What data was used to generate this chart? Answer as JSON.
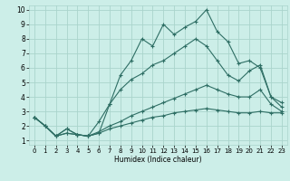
{
  "xlabel": "Humidex (Indice chaleur)",
  "bg_color": "#cceee8",
  "grid_color": "#aad4cc",
  "line_color": "#2e6e64",
  "xlim": [
    -0.5,
    23.5
  ],
  "ylim": [
    0.7,
    10.3
  ],
  "xticks": [
    0,
    1,
    2,
    3,
    4,
    5,
    6,
    7,
    8,
    9,
    10,
    11,
    12,
    13,
    14,
    15,
    16,
    17,
    18,
    19,
    20,
    21,
    22,
    23
  ],
  "yticks": [
    1,
    2,
    3,
    4,
    5,
    6,
    7,
    8,
    9,
    10
  ],
  "lines": [
    {
      "x": [
        0,
        1,
        2,
        3,
        4,
        5,
        6,
        7,
        8,
        9,
        10,
        11,
        12,
        13,
        14,
        15,
        16,
        17,
        18,
        19,
        20,
        21,
        22,
        23
      ],
      "y": [
        2.6,
        2.0,
        1.3,
        1.8,
        1.4,
        1.3,
        1.5,
        3.5,
        5.5,
        6.5,
        8.0,
        7.5,
        9.0,
        8.3,
        8.8,
        9.2,
        10.0,
        8.5,
        7.8,
        6.3,
        6.5,
        6.0,
        4.0,
        3.3
      ]
    },
    {
      "x": [
        0,
        1,
        2,
        3,
        4,
        5,
        6,
        7,
        8,
        9,
        10,
        11,
        12,
        13,
        14,
        15,
        16,
        17,
        18,
        19,
        20,
        21,
        22,
        23
      ],
      "y": [
        2.6,
        2.0,
        1.3,
        1.8,
        1.4,
        1.3,
        2.3,
        3.5,
        4.5,
        5.2,
        5.6,
        6.2,
        6.5,
        7.0,
        7.5,
        8.0,
        7.5,
        6.5,
        5.5,
        5.1,
        5.8,
        6.2,
        4.0,
        3.6
      ]
    },
    {
      "x": [
        0,
        1,
        2,
        3,
        4,
        5,
        6,
        7,
        8,
        9,
        10,
        11,
        12,
        13,
        14,
        15,
        16,
        17,
        18,
        19,
        20,
        21,
        22,
        23
      ],
      "y": [
        2.6,
        2.0,
        1.3,
        1.5,
        1.4,
        1.3,
        1.6,
        2.0,
        2.3,
        2.7,
        3.0,
        3.3,
        3.6,
        3.9,
        4.2,
        4.5,
        4.8,
        4.5,
        4.2,
        4.0,
        4.0,
        4.5,
        3.5,
        3.0
      ]
    },
    {
      "x": [
        0,
        1,
        2,
        3,
        4,
        5,
        6,
        7,
        8,
        9,
        10,
        11,
        12,
        13,
        14,
        15,
        16,
        17,
        18,
        19,
        20,
        21,
        22,
        23
      ],
      "y": [
        2.6,
        2.0,
        1.3,
        1.5,
        1.4,
        1.3,
        1.5,
        1.8,
        2.0,
        2.2,
        2.4,
        2.6,
        2.7,
        2.9,
        3.0,
        3.1,
        3.2,
        3.1,
        3.0,
        2.9,
        2.9,
        3.0,
        2.9,
        2.9
      ]
    }
  ]
}
